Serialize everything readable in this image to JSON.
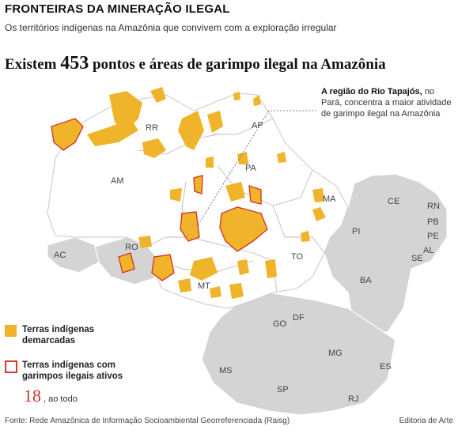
{
  "header": {
    "title": "FRONTEIRAS DA MINERAÇÃO ILEGAL",
    "subtitle": "Os territórios indígenas na Amazônia que convivem com a exploração irregular",
    "headline_pre": "Existem",
    "headline_number": "453",
    "headline_post": "pontos e áreas de garimpo ilegal na Amazônia"
  },
  "callout": {
    "bold": "A região do Rio Tapajós,",
    "text": "no Pará, concentra a maior atividade de garimpo ilegal na Amazônia"
  },
  "states": [
    "RR",
    "AP",
    "AM",
    "PA",
    "MA",
    "CE",
    "RN",
    "PB",
    "PE",
    "AL",
    "SE",
    "PI",
    "AC",
    "RO",
    "TO",
    "BA",
    "MT",
    "GO",
    "DF",
    "MG",
    "ES",
    "MS",
    "SP",
    "RJ"
  ],
  "legend": {
    "demarcadas": "Terras indígenas demarcadas",
    "ativos": "Terras indígenas com garimpos ilegais ativos",
    "total_number": "18",
    "total_text": ", ao todo"
  },
  "footer": {
    "source": "Fonte: Rede Amazônica de Informação Socioambiental Georreferenciada (Raisg)",
    "credit": "Editoria de Arte"
  },
  "colors": {
    "territory_fill": "#f0b42a",
    "active_border": "#d23a2c",
    "amazon_states": "#ffffff",
    "other_states": "#d4d4d4",
    "total_number": "#c8352a"
  }
}
